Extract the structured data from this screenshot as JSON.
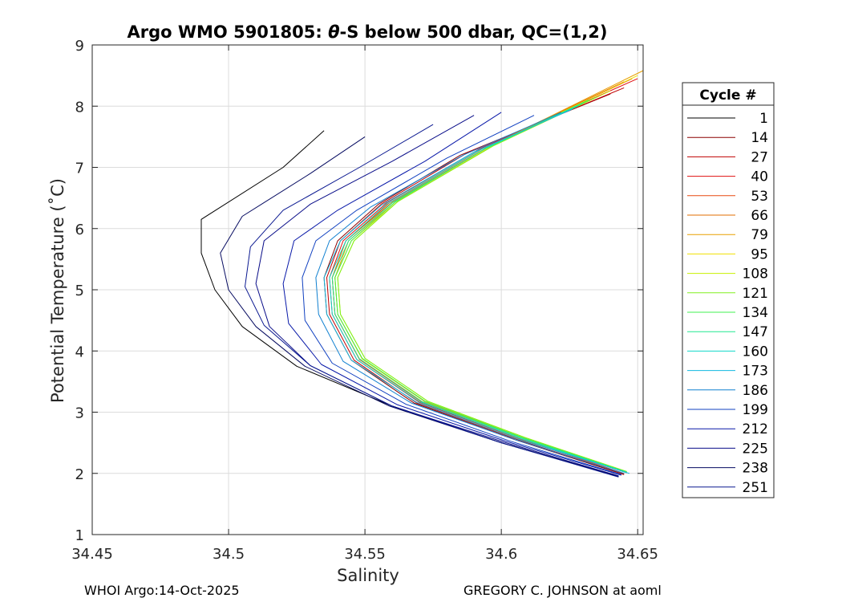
{
  "chart_data": {
    "type": "line",
    "title_prefix": "Argo WMO 5901805: ",
    "title_theta": "θ",
    "title_suffix": "-S below 500 dbar,  QC=(1,2)",
    "xlabel": "Salinity",
    "ylabel": "Potential Temperature (˚C)",
    "xlim": [
      34.45,
      34.652
    ],
    "ylim": [
      1,
      9
    ],
    "xticks": [
      34.45,
      34.5,
      34.55,
      34.6,
      34.65
    ],
    "xtick_labels": [
      "34.45",
      "34.5",
      "34.55",
      "34.6",
      "34.65"
    ],
    "yticks": [
      1,
      2,
      3,
      4,
      5,
      6,
      7,
      8,
      9
    ],
    "ytick_labels": [
      "1",
      "2",
      "3",
      "4",
      "5",
      "6",
      "7",
      "8",
      "9"
    ],
    "grid": true,
    "legend_title": "Cycle #",
    "legend_position": "outside-right",
    "series": [
      {
        "name": "1",
        "color": "#000000",
        "values": [
          [
            34.643,
            1.95
          ],
          [
            34.6,
            2.5
          ],
          [
            34.56,
            3.1
          ],
          [
            34.525,
            3.75
          ],
          [
            34.505,
            4.4
          ],
          [
            34.495,
            5.0
          ],
          [
            34.49,
            5.6
          ],
          [
            34.49,
            6.15
          ],
          [
            34.52,
            7.0
          ],
          [
            34.535,
            7.6
          ]
        ]
      },
      {
        "name": "14",
        "color": "#8b0000",
        "values": [
          [
            34.645,
            1.98
          ],
          [
            34.605,
            2.55
          ],
          [
            34.568,
            3.15
          ],
          [
            34.545,
            3.85
          ],
          [
            34.536,
            4.6
          ],
          [
            34.535,
            5.2
          ],
          [
            34.54,
            5.8
          ],
          [
            34.555,
            6.4
          ],
          [
            34.585,
            7.2
          ],
          [
            34.64,
            8.2
          ]
        ]
      },
      {
        "name": "27",
        "color": "#c00000",
        "values": [
          [
            34.645,
            1.99
          ],
          [
            34.606,
            2.55
          ],
          [
            34.569,
            3.15
          ],
          [
            34.546,
            3.85
          ],
          [
            34.537,
            4.6
          ],
          [
            34.536,
            5.2
          ],
          [
            34.541,
            5.8
          ],
          [
            34.556,
            6.4
          ],
          [
            34.588,
            7.25
          ],
          [
            34.645,
            8.3
          ]
        ]
      },
      {
        "name": "40",
        "color": "#e01010",
        "values": [
          [
            34.645,
            2.0
          ],
          [
            34.607,
            2.56
          ],
          [
            34.57,
            3.16
          ],
          [
            34.547,
            3.86
          ],
          [
            34.538,
            4.6
          ],
          [
            34.537,
            5.2
          ],
          [
            34.542,
            5.8
          ],
          [
            34.558,
            6.42
          ],
          [
            34.592,
            7.3
          ],
          [
            34.65,
            8.45
          ]
        ]
      },
      {
        "name": "53",
        "color": "#e84a10",
        "values": [
          [
            34.645,
            2.0
          ],
          [
            34.607,
            2.56
          ],
          [
            34.571,
            3.16
          ],
          [
            34.548,
            3.86
          ],
          [
            34.539,
            4.6
          ],
          [
            34.538,
            5.2
          ],
          [
            34.543,
            5.8
          ],
          [
            34.559,
            6.42
          ],
          [
            34.593,
            7.3
          ],
          [
            34.645,
            8.4
          ]
        ]
      },
      {
        "name": "66",
        "color": "#e06c00",
        "values": [
          [
            34.646,
            2.01
          ],
          [
            34.608,
            2.57
          ],
          [
            34.571,
            3.17
          ],
          [
            34.548,
            3.87
          ],
          [
            34.539,
            4.6
          ],
          [
            34.538,
            5.2
          ],
          [
            34.543,
            5.8
          ],
          [
            34.56,
            6.43
          ],
          [
            34.595,
            7.33
          ],
          [
            34.648,
            8.45
          ]
        ]
      },
      {
        "name": "79",
        "color": "#e8a000",
        "values": [
          [
            34.646,
            2.02
          ],
          [
            34.608,
            2.57
          ],
          [
            34.572,
            3.17
          ],
          [
            34.549,
            3.87
          ],
          [
            34.54,
            4.6
          ],
          [
            34.539,
            5.2
          ],
          [
            34.544,
            5.8
          ],
          [
            34.561,
            6.43
          ],
          [
            34.596,
            7.35
          ],
          [
            34.652,
            8.58
          ]
        ]
      },
      {
        "name": "95",
        "color": "#f0e000",
        "values": [
          [
            34.646,
            2.02
          ],
          [
            34.609,
            2.58
          ],
          [
            34.572,
            3.18
          ],
          [
            34.549,
            3.87
          ],
          [
            34.54,
            4.6
          ],
          [
            34.539,
            5.2
          ],
          [
            34.545,
            5.8
          ],
          [
            34.562,
            6.44
          ],
          [
            34.597,
            7.36
          ],
          [
            34.65,
            8.5
          ]
        ]
      },
      {
        "name": "108",
        "color": "#c8f000",
        "values": [
          [
            34.646,
            2.03
          ],
          [
            34.609,
            2.58
          ],
          [
            34.573,
            3.18
          ],
          [
            34.55,
            3.88
          ],
          [
            34.541,
            4.6
          ],
          [
            34.54,
            5.2
          ],
          [
            34.546,
            5.8
          ],
          [
            34.562,
            6.44
          ],
          [
            34.597,
            7.35
          ],
          [
            34.64,
            8.25
          ]
        ]
      },
      {
        "name": "121",
        "color": "#80f020",
        "values": [
          [
            34.646,
            2.03
          ],
          [
            34.609,
            2.58
          ],
          [
            34.573,
            3.18
          ],
          [
            34.55,
            3.88
          ],
          [
            34.541,
            4.6
          ],
          [
            34.54,
            5.2
          ],
          [
            34.546,
            5.8
          ],
          [
            34.562,
            6.44
          ],
          [
            34.597,
            7.35
          ],
          [
            34.635,
            8.15
          ]
        ]
      },
      {
        "name": "134",
        "color": "#40f050",
        "values": [
          [
            34.646,
            2.02
          ],
          [
            34.608,
            2.58
          ],
          [
            34.572,
            3.18
          ],
          [
            34.549,
            3.88
          ],
          [
            34.54,
            4.6
          ],
          [
            34.539,
            5.2
          ],
          [
            34.545,
            5.8
          ],
          [
            34.561,
            6.43
          ],
          [
            34.595,
            7.33
          ],
          [
            34.632,
            8.1
          ]
        ]
      },
      {
        "name": "147",
        "color": "#20e890",
        "values": [
          [
            34.646,
            2.02
          ],
          [
            34.608,
            2.57
          ],
          [
            34.571,
            3.17
          ],
          [
            34.548,
            3.87
          ],
          [
            34.539,
            4.6
          ],
          [
            34.538,
            5.2
          ],
          [
            34.544,
            5.8
          ],
          [
            34.56,
            6.42
          ],
          [
            34.594,
            7.3
          ],
          [
            34.63,
            8.05
          ]
        ]
      },
      {
        "name": "160",
        "color": "#10d8c8",
        "values": [
          [
            34.646,
            2.01
          ],
          [
            34.607,
            2.57
          ],
          [
            34.57,
            3.17
          ],
          [
            34.547,
            3.86
          ],
          [
            34.538,
            4.6
          ],
          [
            34.537,
            5.2
          ],
          [
            34.543,
            5.8
          ],
          [
            34.558,
            6.4
          ],
          [
            34.592,
            7.28
          ],
          [
            34.628,
            8.0
          ]
        ]
      },
      {
        "name": "173",
        "color": "#10b8e0",
        "values": [
          [
            34.647,
            2.0
          ],
          [
            34.606,
            2.56
          ],
          [
            34.569,
            3.16
          ],
          [
            34.545,
            3.85
          ],
          [
            34.536,
            4.6
          ],
          [
            34.535,
            5.2
          ],
          [
            34.541,
            5.8
          ],
          [
            34.556,
            6.38
          ],
          [
            34.59,
            7.25
          ],
          [
            34.626,
            7.95
          ]
        ]
      },
      {
        "name": "186",
        "color": "#1080d0",
        "values": [
          [
            34.645,
            2.0
          ],
          [
            34.605,
            2.55
          ],
          [
            34.567,
            3.15
          ],
          [
            34.542,
            3.83
          ],
          [
            34.533,
            4.6
          ],
          [
            34.532,
            5.2
          ],
          [
            34.537,
            5.8
          ],
          [
            34.552,
            6.35
          ],
          [
            34.586,
            7.2
          ],
          [
            34.622,
            7.9
          ]
        ]
      },
      {
        "name": "199",
        "color": "#1040c0",
        "values": [
          [
            34.644,
            1.98
          ],
          [
            34.603,
            2.53
          ],
          [
            34.565,
            3.13
          ],
          [
            34.538,
            3.8
          ],
          [
            34.528,
            4.5
          ],
          [
            34.527,
            5.2
          ],
          [
            34.532,
            5.8
          ],
          [
            34.547,
            6.3
          ],
          [
            34.58,
            7.15
          ],
          [
            34.612,
            7.85
          ]
        ]
      },
      {
        "name": "212",
        "color": "#0818a8",
        "values": [
          [
            34.644,
            1.97
          ],
          [
            34.602,
            2.52
          ],
          [
            34.562,
            3.12
          ],
          [
            34.534,
            3.78
          ],
          [
            34.522,
            4.45
          ],
          [
            34.52,
            5.1
          ],
          [
            34.524,
            5.8
          ],
          [
            34.54,
            6.3
          ],
          [
            34.572,
            7.1
          ],
          [
            34.6,
            7.9
          ]
        ]
      },
      {
        "name": "225",
        "color": "#080c88",
        "values": [
          [
            34.643,
            1.96
          ],
          [
            34.601,
            2.51
          ],
          [
            34.56,
            3.1
          ],
          [
            34.53,
            3.76
          ],
          [
            34.515,
            4.4
          ],
          [
            34.51,
            5.1
          ],
          [
            34.513,
            5.8
          ],
          [
            34.53,
            6.4
          ],
          [
            34.56,
            7.1
          ],
          [
            34.59,
            7.85
          ]
        ]
      },
      {
        "name": "238",
        "color": "#050a60",
        "values": [
          [
            34.643,
            1.95
          ],
          [
            34.6,
            2.5
          ],
          [
            34.559,
            3.1
          ],
          [
            34.528,
            3.75
          ],
          [
            34.51,
            4.4
          ],
          [
            34.5,
            5.0
          ],
          [
            34.497,
            5.6
          ],
          [
            34.505,
            6.2
          ],
          [
            34.53,
            6.9
          ],
          [
            34.55,
            7.5
          ]
        ]
      },
      {
        "name": "251",
        "color": "#0a1890",
        "values": [
          [
            34.643,
            1.94
          ],
          [
            34.6,
            2.5
          ],
          [
            34.56,
            3.1
          ],
          [
            34.53,
            3.76
          ],
          [
            34.513,
            4.42
          ],
          [
            34.506,
            5.05
          ],
          [
            34.508,
            5.7
          ],
          [
            34.52,
            6.3
          ],
          [
            34.548,
            7.0
          ],
          [
            34.575,
            7.7
          ]
        ]
      }
    ]
  },
  "footer": {
    "left": "WHOI Argo:14-Oct-2025",
    "right": "GREGORY C. JOHNSON at aoml"
  }
}
